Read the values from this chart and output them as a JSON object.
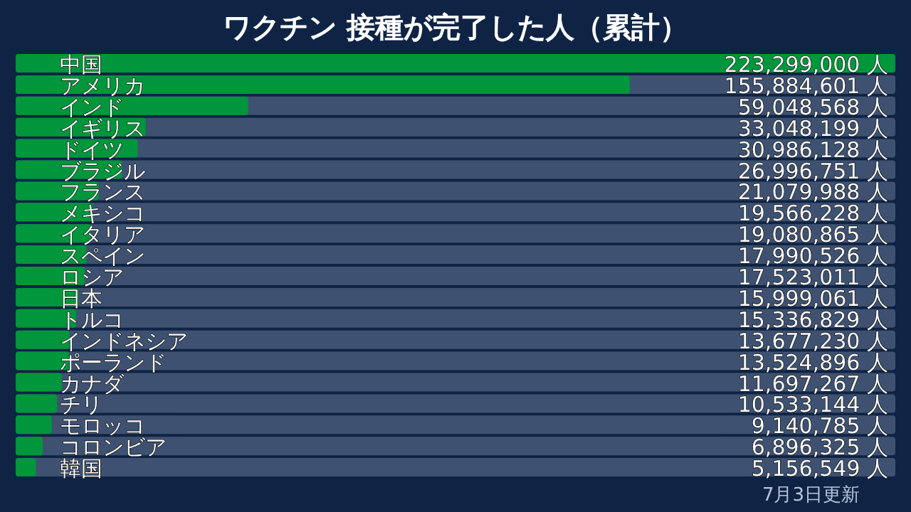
{
  "chart_data": {
    "type": "bar",
    "orientation": "horizontal",
    "title": "ワクチン 接種が完了した人（累計）",
    "categories": [
      "中国",
      "アメリカ",
      "インド",
      "イギリス",
      "ドイツ",
      "ブラジル",
      "フランス",
      "メキシコ",
      "イタリア",
      "スペイン",
      "ロシア",
      "日本",
      "トルコ",
      "インドネシア",
      "ポーランド",
      "カナダ",
      "チリ",
      "モロッコ",
      "コロンビア",
      "韓国"
    ],
    "values": [
      223299000,
      155884601,
      59048568,
      33048199,
      30986128,
      26996751,
      21079988,
      19566228,
      19080865,
      17990526,
      17523011,
      15999061,
      15336829,
      13677230,
      13524896,
      11697267,
      10533144,
      9140785,
      6896325,
      5156549
    ],
    "value_labels": [
      "223,299,000 人",
      "155,884,601 人",
      "59,048,568 人",
      "33,048,199 人",
      "30,986,128 人",
      "26,996,751 人",
      "21,079,988 人",
      "19,566,228 人",
      "19,080,865 人",
      "17,990,526 人",
      "17,523,011 人",
      "15,999,061 人",
      "15,336,829 人",
      "13,677,230 人",
      "13,524,896 人",
      "11,697,267 人",
      "10,533,144 人",
      "9,140,785 人",
      "6,896,325 人",
      "5,156,549 人"
    ],
    "color": "#00963c",
    "annotations": [
      "7月3日更新"
    ]
  }
}
